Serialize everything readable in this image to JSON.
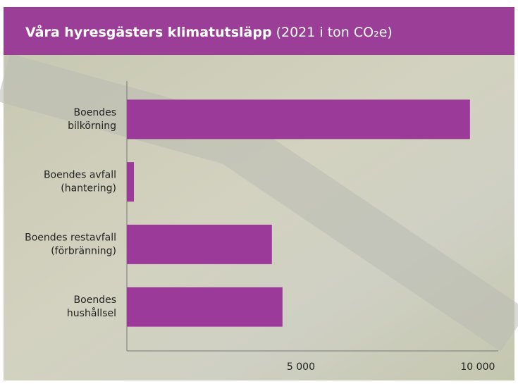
{
  "chart_data": {
    "type": "bar",
    "orientation": "horizontal",
    "title": "Våra hyresgästers klimatutsläpp",
    "subtitle": "(2021 i ton CO₂e)",
    "categories": [
      [
        "Boendes",
        "bilkörning"
      ],
      [
        "Boendes avfall",
        "(hantering)"
      ],
      [
        "Boendes restavfall",
        "(förbränning)"
      ],
      [
        "Boendes",
        "hushållsel"
      ]
    ],
    "values": [
      9700,
      200,
      4100,
      4400
    ],
    "color": "#9b3a98",
    "xlim": [
      0,
      10500
    ],
    "xticks": [
      {
        "value": 5000,
        "label": "5 000"
      },
      {
        "value": 10000,
        "label": "10 000"
      }
    ]
  }
}
